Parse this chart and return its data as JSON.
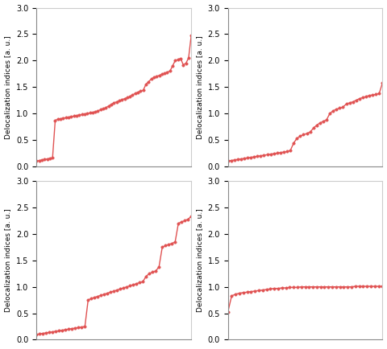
{
  "line_color": "#e05252",
  "marker": "o",
  "markersize": 2.5,
  "linewidth": 1.0,
  "ylabel": "Delocalization indices [a. u.]",
  "ylim": [
    0.0,
    3.0
  ],
  "yticks": [
    0.0,
    0.5,
    1.0,
    1.5,
    2.0,
    2.5,
    3.0
  ],
  "subplot1_y": [
    0.1,
    0.11,
    0.12,
    0.13,
    0.14,
    0.15,
    0.16,
    0.87,
    0.89,
    0.9,
    0.91,
    0.92,
    0.93,
    0.94,
    0.95,
    0.96,
    0.97,
    0.98,
    0.99,
    1.0,
    1.01,
    1.02,
    1.03,
    1.05,
    1.07,
    1.09,
    1.11,
    1.14,
    1.17,
    1.2,
    1.22,
    1.24,
    1.26,
    1.28,
    1.3,
    1.32,
    1.35,
    1.38,
    1.4,
    1.42,
    1.44,
    1.55,
    1.6,
    1.65,
    1.68,
    1.7,
    1.72,
    1.74,
    1.76,
    1.78,
    1.8,
    1.9,
    2.0,
    2.02,
    2.04,
    1.92,
    1.95,
    2.05,
    2.48
  ],
  "subplot2_y": [
    0.1,
    0.11,
    0.12,
    0.13,
    0.14,
    0.15,
    0.16,
    0.17,
    0.18,
    0.19,
    0.2,
    0.21,
    0.22,
    0.23,
    0.24,
    0.25,
    0.26,
    0.27,
    0.28,
    0.3,
    0.44,
    0.53,
    0.57,
    0.6,
    0.62,
    0.65,
    0.72,
    0.78,
    0.82,
    0.85,
    0.88,
    1.0,
    1.05,
    1.08,
    1.1,
    1.12,
    1.18,
    1.2,
    1.22,
    1.25,
    1.28,
    1.3,
    1.32,
    1.34,
    1.35,
    1.36,
    1.38,
    1.58
  ],
  "subplot3_y": [
    0.1,
    0.11,
    0.12,
    0.13,
    0.14,
    0.15,
    0.16,
    0.17,
    0.18,
    0.19,
    0.2,
    0.21,
    0.22,
    0.23,
    0.24,
    0.25,
    0.75,
    0.78,
    0.8,
    0.82,
    0.84,
    0.86,
    0.88,
    0.9,
    0.92,
    0.94,
    0.96,
    0.98,
    1.0,
    1.02,
    1.04,
    1.06,
    1.08,
    1.1,
    1.2,
    1.25,
    1.28,
    1.3,
    1.38,
    1.75,
    1.78,
    1.8,
    1.82,
    1.85,
    2.2,
    2.23,
    2.25,
    2.28,
    2.33
  ],
  "subplot4_y": [
    0.52,
    0.83,
    0.86,
    0.88,
    0.89,
    0.9,
    0.91,
    0.92,
    0.93,
    0.94,
    0.95,
    0.96,
    0.97,
    0.97,
    0.98,
    0.98,
    0.99,
    0.99,
    0.99,
    1.0,
    1.0,
    1.0,
    1.0,
    1.0,
    1.0,
    1.0,
    1.0,
    1.0,
    1.0,
    1.0,
    1.0,
    1.0,
    1.0,
    1.01,
    1.01,
    1.01,
    1.01,
    1.01,
    1.01,
    1.01,
    1.01
  ]
}
